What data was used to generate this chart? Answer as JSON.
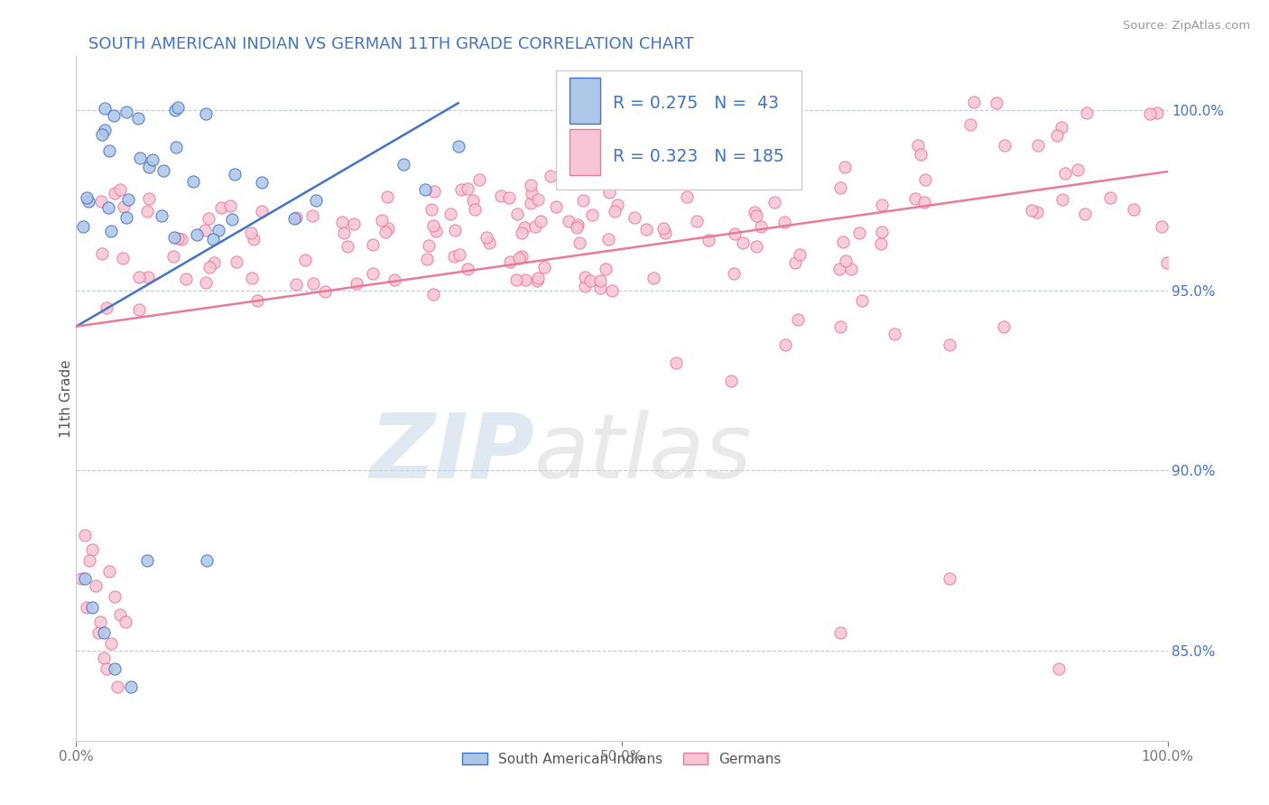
{
  "title": "SOUTH AMERICAN INDIAN VS GERMAN 11TH GRADE CORRELATION CHART",
  "source_text": "Source: ZipAtlas.com",
  "ylabel": "11th Grade",
  "right_ytick_labels": [
    "85.0%",
    "90.0%",
    "95.0%",
    "100.0%"
  ],
  "right_ytick_values": [
    0.85,
    0.9,
    0.95,
    1.0
  ],
  "xlim": [
    0.0,
    1.0
  ],
  "ylim": [
    0.825,
    1.015
  ],
  "blue_R": 0.275,
  "blue_N": 43,
  "pink_R": 0.323,
  "pink_N": 185,
  "blue_color": "#aec6e8",
  "pink_color": "#f7c5d5",
  "blue_line_color": "#4472c4",
  "pink_line_color": "#e87a9a",
  "legend_blue_label": "South American Indians",
  "legend_pink_label": "Germans",
  "title_color": "#4472c4",
  "background_color": "#ffffff",
  "grid_color": "#c0c8d8",
  "blue_trend_x": [
    0.0,
    0.35
  ],
  "blue_trend_y": [
    0.94,
    1.002
  ],
  "pink_trend_x": [
    0.0,
    1.0
  ],
  "pink_trend_y": [
    0.94,
    0.983
  ]
}
